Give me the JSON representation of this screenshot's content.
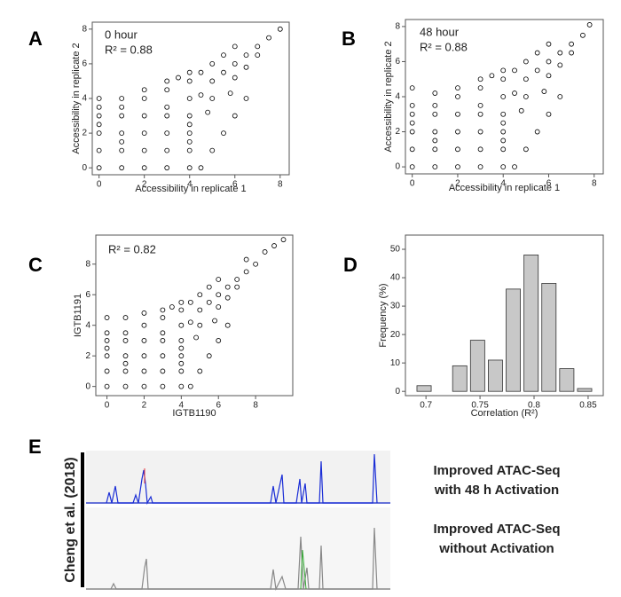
{
  "chart_data": [
    {
      "type": "scatter",
      "panel": "A",
      "annotations": [
        "0 hour",
        "R² = 0.88"
      ],
      "xlabel": "Accessibility in replicate 1",
      "ylabel": "Accessibility in replicate 2",
      "xlim": [
        -0.3,
        8.4
      ],
      "ylim": [
        -0.4,
        8.4
      ],
      "xticks": [
        0,
        2,
        4,
        6,
        8
      ],
      "yticks": [
        0,
        2,
        4,
        6,
        8
      ],
      "color": "#000000",
      "x": [
        0,
        0,
        0,
        0,
        0,
        0,
        0,
        1,
        1,
        1,
        1,
        1,
        1,
        1,
        2,
        2,
        2,
        2,
        2,
        2,
        3,
        3,
        3,
        3,
        3,
        3,
        3,
        4,
        4,
        4,
        4,
        4,
        4,
        4,
        4,
        4,
        4.5,
        5,
        5.5,
        6,
        6.5,
        7,
        7.5,
        8,
        5,
        6,
        6.5,
        7,
        4.5,
        5,
        5.5,
        6,
        3.5,
        5.8,
        4.8,
        4.5,
        5,
        5.5,
        6,
        6.5
      ],
      "values": [
        0,
        1,
        2,
        2.5,
        3,
        3.5,
        4,
        0,
        1,
        1.5,
        2,
        3,
        3.5,
        4,
        0,
        1,
        2,
        3,
        4,
        4.5,
        0,
        1,
        2,
        3,
        3.5,
        4.5,
        5,
        0,
        1,
        1.5,
        2,
        2.5,
        3,
        4,
        5,
        5.5,
        4.2,
        5,
        5.5,
        6,
        6.5,
        7,
        7.5,
        8,
        4,
        5.2,
        5.8,
        6.5,
        5.5,
        6,
        6.5,
        7,
        5.2,
        4.3,
        3.2,
        0,
        1,
        2,
        3,
        4
      ]
    },
    {
      "type": "scatter",
      "panel": "B",
      "annotations": [
        "48 hour",
        "R² = 0.88"
      ],
      "xlabel": "Accessibility in replicate 1",
      "ylabel": "Accessibility in replicate 2",
      "xlim": [
        -0.3,
        8.4
      ],
      "ylim": [
        -0.4,
        8.4
      ],
      "xticks": [
        0,
        2,
        4,
        6,
        8
      ],
      "yticks": [
        0,
        2,
        4,
        6,
        8
      ],
      "color": "#000000",
      "x": [
        0,
        0,
        0,
        0,
        0,
        0,
        0,
        1,
        1,
        1,
        1,
        1,
        1,
        1,
        2,
        2,
        2,
        2,
        2,
        2,
        3,
        3,
        3,
        3,
        3,
        3,
        3,
        4,
        4,
        4,
        4,
        4,
        4,
        4,
        4,
        4,
        4.5,
        5,
        5.5,
        6,
        6.5,
        7,
        7.5,
        7.8,
        5,
        6,
        6.5,
        7,
        4.5,
        5,
        5.5,
        6,
        3.5,
        5.8,
        4.8,
        4.5,
        5,
        5.5,
        6,
        6.5
      ],
      "values": [
        0,
        1,
        2,
        2.5,
        3,
        3.5,
        4.5,
        0,
        1,
        1.5,
        2,
        3,
        3.5,
        4.2,
        0,
        1,
        2,
        3,
        4,
        4.5,
        0,
        1,
        2,
        3,
        3.5,
        4.5,
        5,
        0,
        1,
        1.5,
        2,
        2.5,
        3,
        4,
        5,
        5.5,
        4.2,
        5,
        5.5,
        6,
        6.5,
        7,
        7.5,
        8.1,
        4,
        5.2,
        5.8,
        6.5,
        5.5,
        6,
        6.5,
        7,
        5.2,
        4.3,
        3.2,
        0,
        1,
        2,
        3,
        4
      ]
    },
    {
      "type": "scatter",
      "panel": "C",
      "annotations": [
        "R² = 0.82"
      ],
      "xlabel": "IGTB1190",
      "ylabel": "IGTB1191",
      "xlim": [
        -0.6,
        10
      ],
      "ylim": [
        -0.6,
        9.9
      ],
      "xticks": [
        0,
        2,
        4,
        6,
        8
      ],
      "yticks": [
        0,
        2,
        4,
        6,
        8
      ],
      "color": "#000000",
      "x": [
        0,
        0,
        0,
        0,
        0,
        0,
        0,
        1,
        1,
        1,
        1,
        1,
        1,
        1,
        2,
        2,
        2,
        2,
        2,
        2,
        3,
        3,
        3,
        3,
        3,
        3,
        3,
        4,
        4,
        4,
        4,
        4,
        4,
        4,
        4,
        4,
        4.5,
        5,
        5.5,
        6,
        6.5,
        7,
        7.5,
        8,
        5,
        6,
        6.5,
        7,
        4.5,
        5,
        5.5,
        6,
        3.5,
        5.8,
        4.8,
        4.5,
        5,
        5.5,
        6,
        6.5,
        8.5,
        9,
        9.5,
        7.5
      ],
      "values": [
        0,
        1,
        2,
        2.5,
        3,
        3.5,
        4.5,
        0,
        1,
        1.5,
        2,
        3,
        3.5,
        4.5,
        0,
        1,
        2,
        3,
        4,
        4.8,
        0,
        1,
        2,
        3,
        3.5,
        4.5,
        5,
        0,
        1,
        1.5,
        2,
        2.5,
        3,
        4,
        5,
        5.5,
        4.2,
        5,
        5.5,
        6,
        6.5,
        7,
        7.5,
        8,
        4,
        5.2,
        5.8,
        6.5,
        5.5,
        6,
        6.5,
        7,
        5.2,
        4.3,
        3.2,
        0,
        1,
        2,
        3,
        4,
        8.8,
        9.2,
        9.6,
        8.3
      ]
    },
    {
      "type": "histogram",
      "panel": "D",
      "xlabel": "Correlation (R²)",
      "ylabel": "Frequency (%)",
      "xlim": [
        0.681,
        0.864
      ],
      "ylim": [
        -1.5,
        55
      ],
      "xticks": [
        0.7,
        0.75,
        0.8,
        0.85
      ],
      "yticks": [
        0,
        10,
        20,
        30,
        40,
        50
      ],
      "color": "#c8c8c8",
      "bins": [
        0.69,
        0.7065,
        0.723,
        0.7395,
        0.756,
        0.7725,
        0.789,
        0.8055,
        0.822,
        0.8385,
        0.855
      ],
      "values": [
        2,
        0,
        9,
        18,
        11,
        36,
        48,
        38,
        8,
        1
      ]
    }
  ],
  "track_panel": {
    "panel": "E",
    "citation": "Cheng et al. (2018)",
    "tracks": [
      {
        "lines": [
          "Improved ATAC-Seq",
          "with 48 h Activation"
        ]
      },
      {
        "lines": [
          "Improved ATAC-Seq",
          "without Activation"
        ]
      }
    ]
  }
}
